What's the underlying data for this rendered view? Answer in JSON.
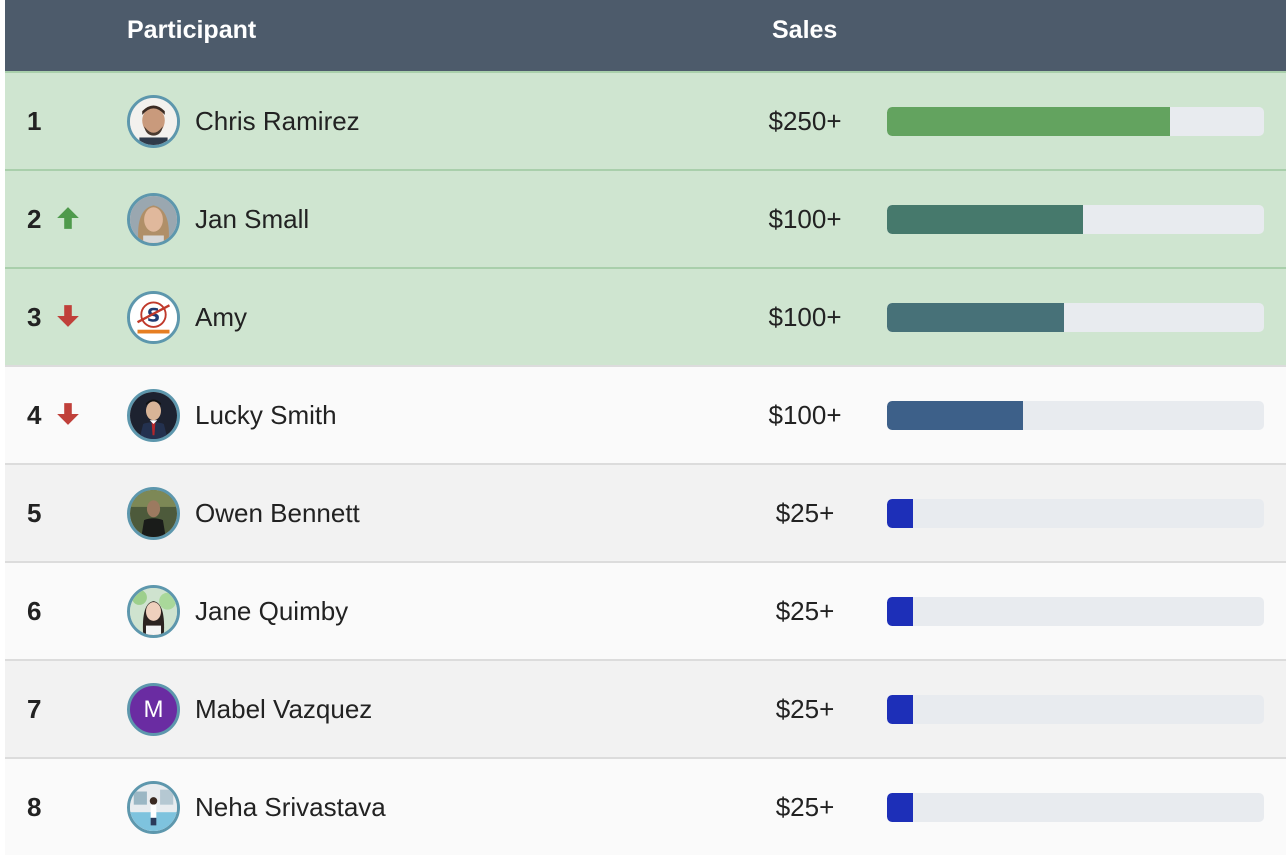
{
  "header": {
    "participant_label": "Participant",
    "sales_label": "Sales"
  },
  "rows": [
    {
      "rank": "1",
      "trend": "none",
      "name": "Chris Ramirez",
      "sales": "$250+",
      "progress": 0.75,
      "bar_color": "#63a35f",
      "avatar": "photo-man-beard"
    },
    {
      "rank": "2",
      "trend": "up",
      "name": "Jan Small",
      "sales": "$100+",
      "progress": 0.52,
      "bar_color": "#46796c",
      "avatar": "photo-woman-blonde"
    },
    {
      "rank": "3",
      "trend": "down",
      "name": "Amy",
      "sales": "$100+",
      "progress": 0.47,
      "bar_color": "#477178",
      "avatar": "logo-s"
    },
    {
      "rank": "4",
      "trend": "down",
      "name": "Lucky Smith",
      "sales": "$100+",
      "progress": 0.36,
      "bar_color": "#3d6089",
      "avatar": "photo-man-suit"
    },
    {
      "rank": "5",
      "trend": "none",
      "name": "Owen Bennett",
      "sales": "$25+",
      "progress": 0.07,
      "bar_color": "#1d2fb8",
      "avatar": "photo-man-dark"
    },
    {
      "rank": "6",
      "trend": "none",
      "name": "Jane Quimby",
      "sales": "$25+",
      "progress": 0.07,
      "bar_color": "#1d2fb8",
      "avatar": "photo-woman-outdoor"
    },
    {
      "rank": "7",
      "trend": "none",
      "name": "Mabel Vazquez",
      "sales": "$25+",
      "progress": 0.07,
      "bar_color": "#1d2fb8",
      "avatar": "letter",
      "avatar_letter": "M"
    },
    {
      "rank": "8",
      "trend": "none",
      "name": "Neha Srivastava",
      "sales": "$25+",
      "progress": 0.07,
      "bar_color": "#1d2fb8",
      "avatar": "photo-person-pool"
    }
  ],
  "colors": {
    "header_bg": "#4d5b6b",
    "top_row_bg": "#cfe5d0",
    "trend_up": "#4f9a4c",
    "trend_down": "#c0403a",
    "avatar_ring": "#5d97ad"
  }
}
